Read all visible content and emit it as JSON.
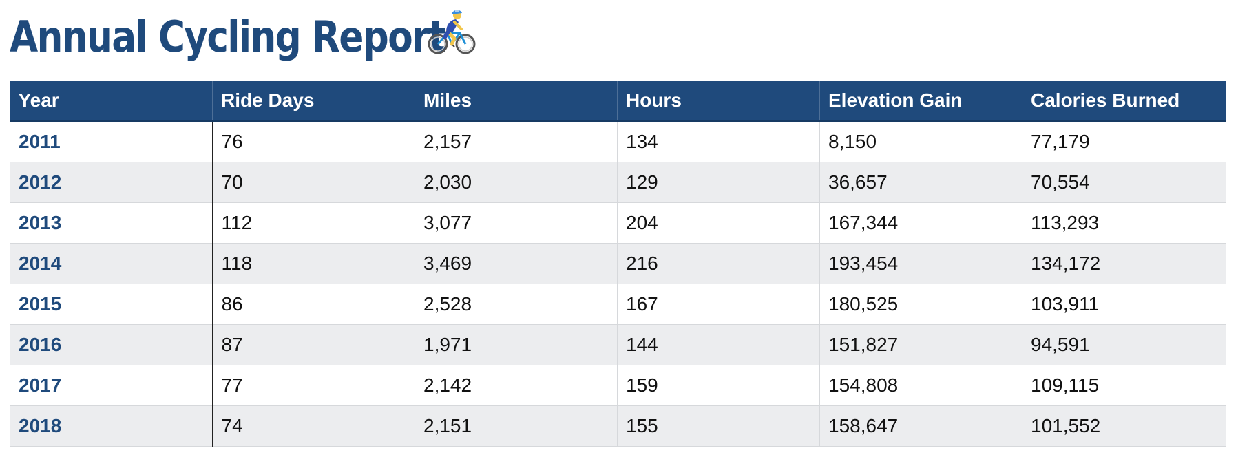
{
  "page": {
    "title": "Annual Cycling Report",
    "title_icon": "cyclist-emoji-icon"
  },
  "colors": {
    "title": "#1f4a7c",
    "header_bg": "#1f4a7c",
    "header_text": "#ffffff",
    "year_text": "#1f4a7c",
    "row_alt_bg": "#ecedef"
  },
  "table": {
    "headers": [
      "Year",
      "Ride Days",
      "Miles",
      "Hours",
      "Elevation Gain",
      "Calories Burned"
    ],
    "rows": [
      [
        "2011",
        "76",
        "2,157",
        "134",
        "8,150",
        "77,179"
      ],
      [
        "2012",
        "70",
        "2,030",
        "129",
        "36,657",
        "70,554"
      ],
      [
        "2013",
        "112",
        "3,077",
        "204",
        "167,344",
        "113,293"
      ],
      [
        "2014",
        "118",
        "3,469",
        "216",
        "193,454",
        "134,172"
      ],
      [
        "2015",
        "86",
        "2,528",
        "167",
        "180,525",
        "103,911"
      ],
      [
        "2016",
        "87",
        "1,971",
        "144",
        "151,827",
        "94,591"
      ],
      [
        "2017",
        "77",
        "2,142",
        "159",
        "154,808",
        "109,115"
      ],
      [
        "2018",
        "74",
        "2,151",
        "155",
        "158,647",
        "101,552"
      ]
    ]
  }
}
